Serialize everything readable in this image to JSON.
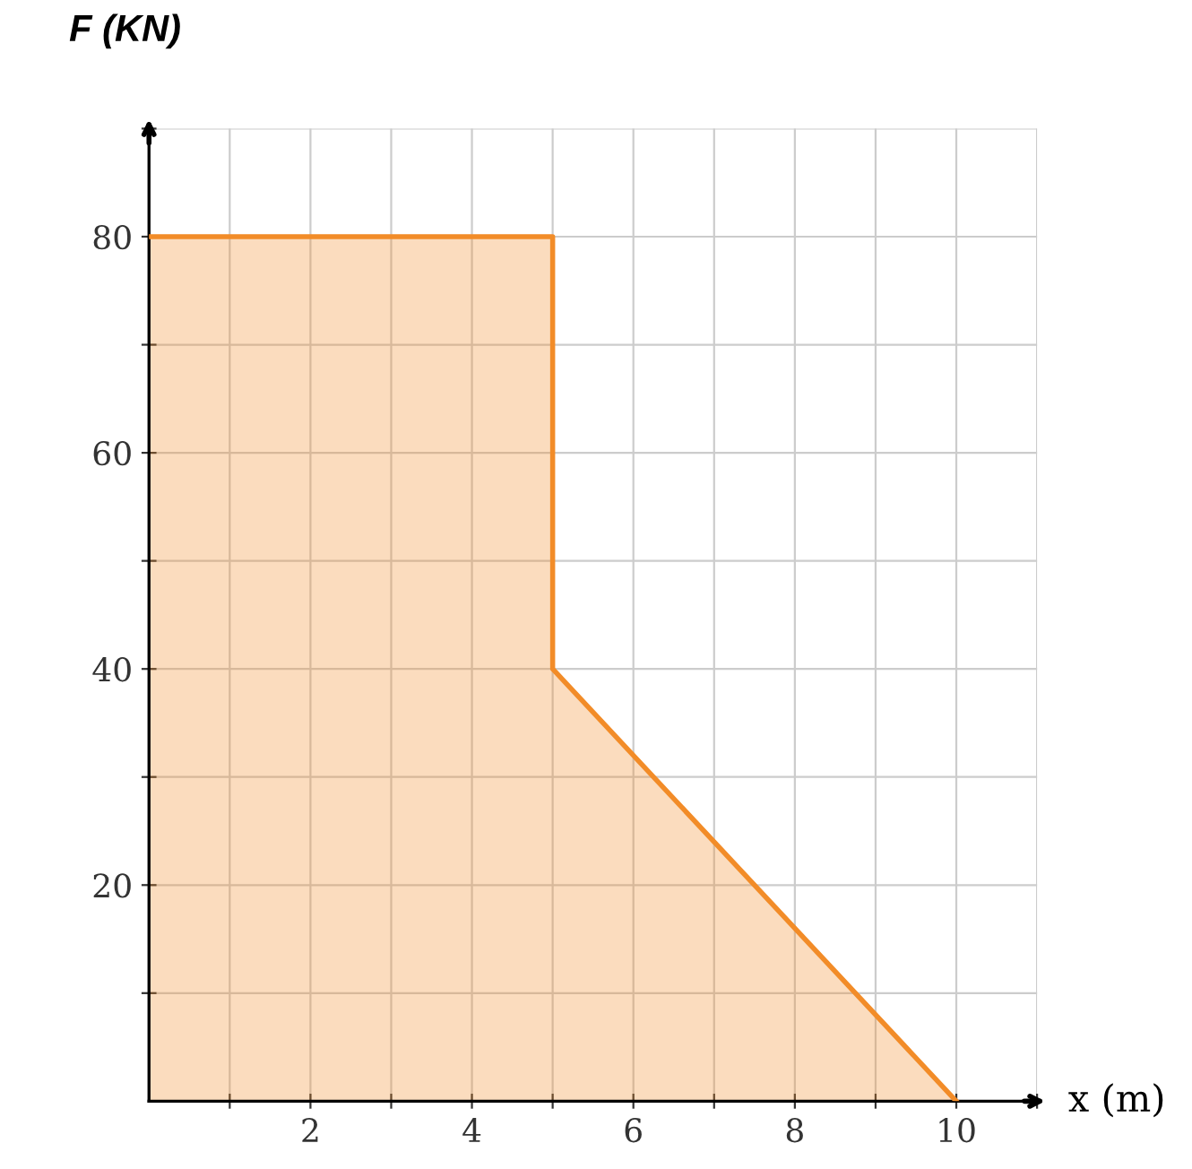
{
  "chart_data": {
    "type": "area",
    "ylabel": "F (KN)",
    "xlabel": "x (m)",
    "x": [
      0,
      5,
      5,
      10
    ],
    "series": [
      {
        "color": "#f28c28",
        "values": [
          80,
          80,
          40,
          0
        ]
      }
    ],
    "xlim": [
      0,
      11
    ],
    "ylim": [
      0,
      90
    ],
    "xticks": [
      {
        "value": 1,
        "label": null
      },
      2,
      {
        "value": 3,
        "label": null
      },
      4,
      {
        "value": 5,
        "label": null
      },
      6,
      {
        "value": 7,
        "label": null
      },
      8,
      {
        "value": 9,
        "label": null
      },
      10,
      {
        "value": 11,
        "label": null
      }
    ],
    "yticks": [
      {
        "value": 10,
        "label": null
      },
      20,
      {
        "value": 30,
        "label": null
      },
      40,
      {
        "value": 50,
        "label": null
      },
      60,
      {
        "value": 70,
        "label": null
      },
      80,
      {
        "value": 90,
        "label": null
      }
    ],
    "grid": true,
    "legend": false
  }
}
